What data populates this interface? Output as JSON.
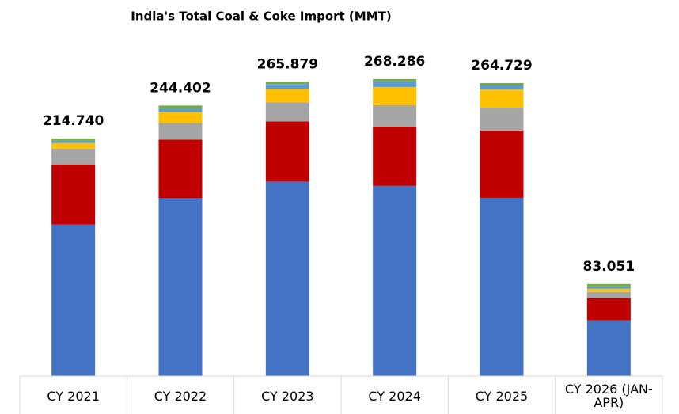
{
  "chart_data": {
    "type": "stacked-bar",
    "title": "India's Total Coal & Coke Import (MMT)",
    "categories": [
      "CY 2021",
      "CY 2022",
      "CY 2023",
      "CY 2024",
      "CY 2025",
      "CY 2026 (JAN-APR)"
    ],
    "series": [
      {
        "color": "#4472c4",
        "values": [
          136.8,
          160.7,
          175.7,
          171.8,
          161.0,
          50.3
        ]
      },
      {
        "color": "#c00000",
        "values": [
          54.4,
          52.9,
          54.4,
          53.6,
          60.8,
          20.0
        ]
      },
      {
        "color": "#a5a5a5",
        "values": [
          14.3,
          15.0,
          17.2,
          19.3,
          20.7,
          5.7
        ]
      },
      {
        "color": "#ffc000",
        "values": [
          5.0,
          10.0,
          12.2,
          16.5,
          16.5,
          2.9
        ]
      },
      {
        "color": "#5b9bd5",
        "values": [
          2.1,
          2.9,
          4.3,
          5.0,
          3.6,
          2.1
        ]
      },
      {
        "color": "#70ad47",
        "values": [
          2.1,
          2.9,
          2.1,
          2.1,
          2.1,
          2.1
        ]
      }
    ],
    "totals": {
      "values": [
        214.74,
        244.402,
        265.879,
        268.286,
        264.729,
        83.051
      ],
      "value_labels": [
        "214.740",
        "244.402",
        "265.879",
        "268.286",
        "264.729",
        "83.051"
      ]
    }
  }
}
